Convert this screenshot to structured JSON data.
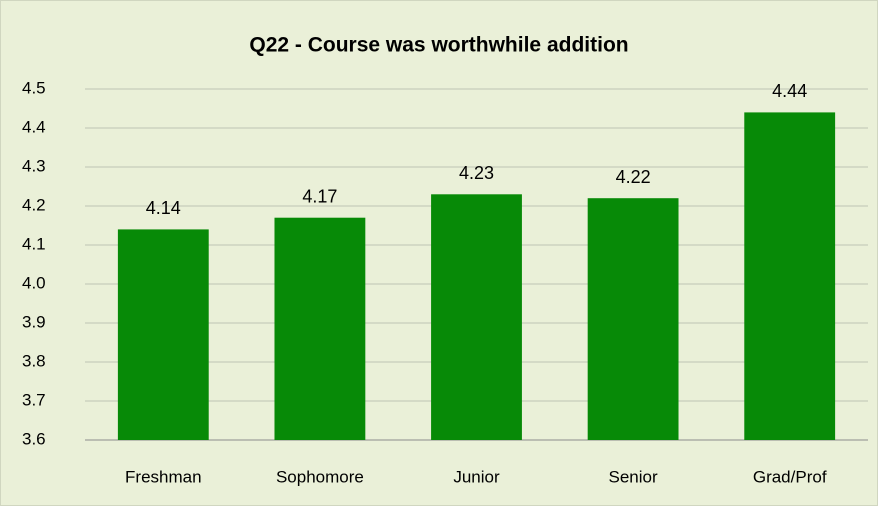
{
  "chart_data": {
    "type": "bar",
    "title": "Q22 - Course was worthwhile addition",
    "categories": [
      "Freshman",
      "Sophomore",
      "Junior",
      "Senior",
      "Grad/Prof"
    ],
    "values": [
      4.14,
      4.17,
      4.23,
      4.22,
      4.44
    ],
    "color": "#078a07",
    "ylim": [
      3.6,
      4.5
    ],
    "yticks": [
      3.6,
      3.7,
      3.8,
      3.9,
      {
        "value": 4,
        "label": "4.0"
      },
      4.1,
      4.2,
      4.3,
      4.4,
      4.5
    ],
    "grid": true
  }
}
